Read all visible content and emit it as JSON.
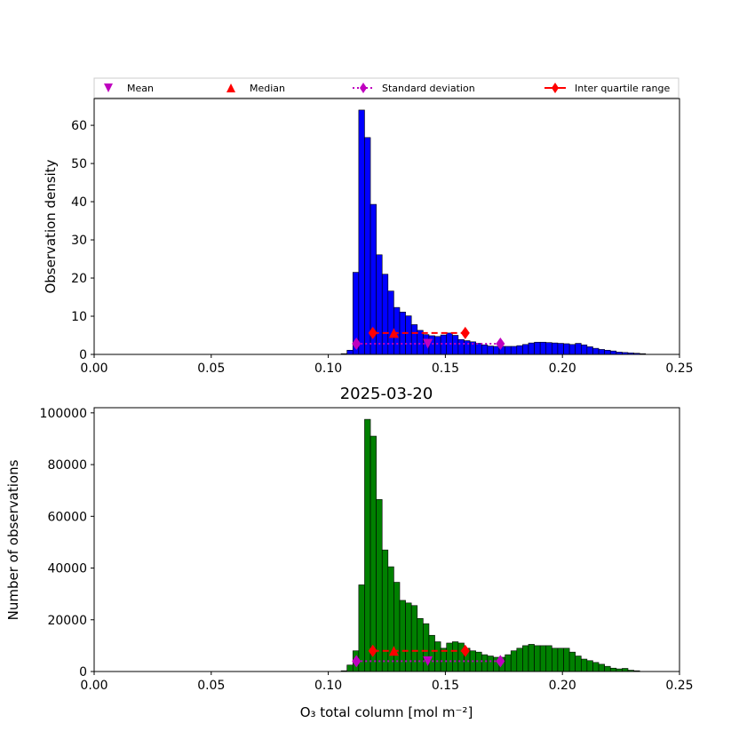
{
  "legend": {
    "placement": "top",
    "entries": [
      {
        "label": "Mean",
        "marker": "triangle-down",
        "color": "#bf00bf",
        "line": "none"
      },
      {
        "label": "Median",
        "marker": "triangle-up",
        "color": "#ff0000",
        "line": "none"
      },
      {
        "label": "Standard deviation",
        "marker": "diamond",
        "color": "#bf00bf",
        "line": "dotted"
      },
      {
        "label": "Inter quartile range",
        "marker": "diamond",
        "color": "#ff0000",
        "line": "solid"
      }
    ]
  },
  "chart_data": [
    {
      "type": "bar",
      "title": "",
      "xlabel": "",
      "ylabel": "Observation density",
      "xlim": [
        0.0,
        0.25
      ],
      "ylim": [
        0,
        67
      ],
      "xticks": [
        "0.00",
        "0.05",
        "0.10",
        "0.15",
        "0.20",
        "0.25"
      ],
      "yticks": [
        "0",
        "10",
        "20",
        "30",
        "40",
        "50",
        "60"
      ],
      "grid": false,
      "bar_color": "#0000ff",
      "bin_start": 0.1055,
      "bin_width": 0.0025,
      "values": [
        0.2,
        1.1,
        21.5,
        64.0,
        56.8,
        39.3,
        26.1,
        21.0,
        16.6,
        12.3,
        11.1,
        10.1,
        7.8,
        6.3,
        5.2,
        4.9,
        4.7,
        5.1,
        5.6,
        5.0,
        3.9,
        3.6,
        3.3,
        2.9,
        2.5,
        2.2,
        2.1,
        2.1,
        2.1,
        2.1,
        2.3,
        2.6,
        3.0,
        3.2,
        3.2,
        3.1,
        3.0,
        2.9,
        2.8,
        2.6,
        2.9,
        2.5,
        2.0,
        1.6,
        1.3,
        1.1,
        0.9,
        0.6,
        0.5,
        0.4,
        0.3,
        0.2
      ],
      "stats": {
        "y": 2.8,
        "mean": 0.1425,
        "std_range": [
          0.112,
          0.1735
        ],
        "median": 0.128,
        "iqr": [
          0.119,
          0.1585
        ],
        "iqr_y": 5.6
      }
    },
    {
      "type": "bar",
      "title": "2025-03-20",
      "xlabel": "O₃ total column [mol m⁻²]",
      "ylabel": "Number of observations",
      "xlim": [
        0.0,
        0.25
      ],
      "ylim": [
        0,
        102000
      ],
      "xticks": [
        "0.00",
        "0.05",
        "0.10",
        "0.15",
        "0.20",
        "0.25"
      ],
      "yticks": [
        "0",
        "20000",
        "40000",
        "60000",
        "80000",
        "100000"
      ],
      "grid": false,
      "bar_color": "#008000",
      "bin_start": 0.1055,
      "bin_width": 0.0025,
      "values": [
        300,
        2500,
        8000,
        33500,
        97500,
        91000,
        66500,
        47000,
        40500,
        34500,
        27500,
        26500,
        25500,
        20500,
        18500,
        14000,
        11500,
        9000,
        11000,
        11500,
        11000,
        9000,
        8000,
        7500,
        6500,
        6000,
        5500,
        5500,
        6500,
        8000,
        9000,
        10000,
        10500,
        10000,
        10000,
        10000,
        9000,
        9000,
        9000,
        7500,
        6000,
        4800,
        4200,
        3500,
        2800,
        2000,
        1300,
        1000,
        1200,
        500,
        300
      ],
      "stats": {
        "y": 4000,
        "mean": 0.1425,
        "std_range": [
          0.112,
          0.1735
        ],
        "median": 0.128,
        "iqr": [
          0.119,
          0.1585
        ],
        "iqr_y": 8000
      }
    }
  ]
}
